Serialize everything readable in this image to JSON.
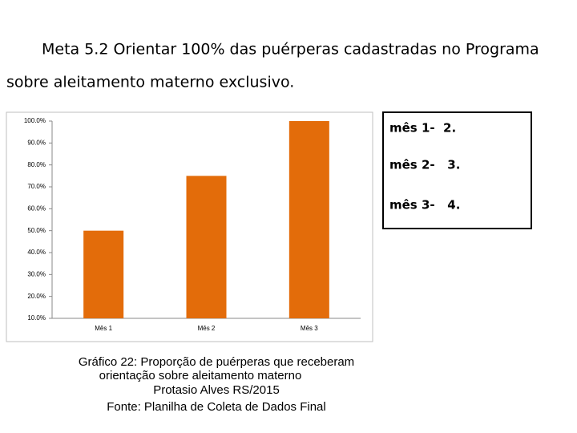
{
  "header": {
    "lines": [
      "Meta 5.2 Orientar 100% das puérperas cadastradas no Programa",
      "sobre aleitamento materno exclusivo."
    ]
  },
  "chart_data": {
    "type": "bar",
    "categories": [
      "Mês 1",
      "Mês 2",
      "Mês 3"
    ],
    "values": [
      50,
      75,
      100
    ],
    "color": "#e36c0a",
    "ylim": [
      10,
      100
    ],
    "yticks": [
      {
        "value": 10,
        "label": "10.0%"
      },
      {
        "value": 20,
        "label": "20.0%"
      },
      {
        "value": 30,
        "label": "30.0%"
      },
      {
        "value": 40,
        "label": "40.0%"
      },
      {
        "value": 50,
        "label": "50.0%"
      },
      {
        "value": 60,
        "label": "60.0%"
      },
      {
        "value": 70,
        "label": "70.0%"
      },
      {
        "value": 80,
        "label": "80.0%"
      },
      {
        "value": 90,
        "label": "90.0%"
      },
      {
        "value": 100,
        "label": "100.0%"
      }
    ],
    "grid": false
  },
  "side_box": {
    "lines": [
      "mês 1-  2.",
      "mês 2-   3.",
      "mês 3-   4."
    ]
  },
  "caption": {
    "lines": [
      "Gráfico 22: Proporção de puérperas que receberam",
      "orientação sobre aleitamento materno",
      "Protasio Alves RS/2015",
      "Fonte: Planilha de Coleta de Dados Final"
    ]
  }
}
